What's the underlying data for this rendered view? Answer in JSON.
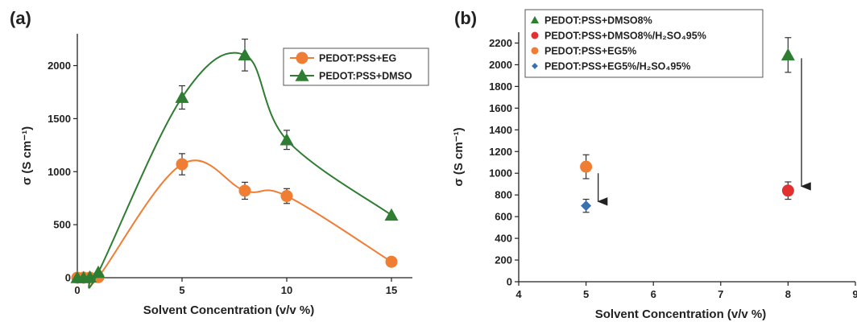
{
  "chart_data": [
    {
      "panel_label": "(a)",
      "type": "line",
      "xlabel": "Solvent Concentration (v/v %)",
      "ylabel": "σ (S cm⁻¹)",
      "xlim": [
        0,
        16
      ],
      "ylim": [
        0,
        2300
      ],
      "xticks": [
        0,
        5,
        10,
        15
      ],
      "yticks": [
        0,
        500,
        1000,
        1500,
        2000
      ],
      "grid": false,
      "legend_position": "top-right",
      "series": [
        {
          "name": "PEDOT:PSS+EG",
          "color": "#f07d34",
          "marker": "circle",
          "x": [
            0,
            0.3,
            0.6,
            1,
            5,
            8,
            10,
            15
          ],
          "y": [
            0,
            0,
            0,
            5,
            1070,
            820,
            770,
            150
          ],
          "err": [
            0,
            0,
            0,
            0,
            100,
            80,
            70,
            0
          ]
        },
        {
          "name": "PEDOT:PSS+DMSO",
          "color": "#2e7d32",
          "marker": "triangle",
          "x": [
            0,
            0.3,
            0.6,
            1,
            5,
            8,
            10,
            15
          ],
          "y": [
            0,
            0,
            5,
            50,
            1700,
            2100,
            1300,
            590
          ],
          "err": [
            0,
            0,
            0,
            0,
            110,
            150,
            90,
            0
          ]
        }
      ]
    },
    {
      "panel_label": "(b)",
      "type": "scatter",
      "xlabel": "Solvent Concentration (v/v %)",
      "ylabel": "σ (S cm⁻¹)",
      "xlim": [
        4,
        9
      ],
      "ylim": [
        0,
        2300
      ],
      "xticks": [
        4,
        5,
        6,
        7,
        8,
        9
      ],
      "yticks": [
        0,
        200,
        400,
        600,
        800,
        1000,
        1200,
        1400,
        1600,
        1800,
        2000,
        2200
      ],
      "grid": false,
      "legend_position": "top-left",
      "series": [
        {
          "name": "PEDOT:PSS+DMSO8%",
          "color": "#2e7d32",
          "marker": "triangle",
          "x": [
            8
          ],
          "y": [
            2090
          ],
          "err": [
            160
          ]
        },
        {
          "name": "PEDOT:PSS+DMSO8%/H₂SO₄95%",
          "color": "#e03030",
          "marker": "circle",
          "x": [
            8
          ],
          "y": [
            840
          ],
          "err": [
            80
          ]
        },
        {
          "name": "PEDOT:PSS+EG5%",
          "color": "#f07d34",
          "marker": "circle",
          "x": [
            5
          ],
          "y": [
            1060
          ],
          "err": [
            110
          ]
        },
        {
          "name": "PEDOT:PSS+EG5%/H₂SO₄95%",
          "color": "#3a6fb0",
          "marker": "diamond",
          "x": [
            5
          ],
          "y": [
            700
          ],
          "err": [
            60
          ]
        }
      ],
      "arrows": [
        {
          "x": 5.18,
          "y_from": 1000,
          "y_to": 680
        },
        {
          "x": 8.2,
          "y_from": 2060,
          "y_to": 820
        }
      ]
    }
  ]
}
